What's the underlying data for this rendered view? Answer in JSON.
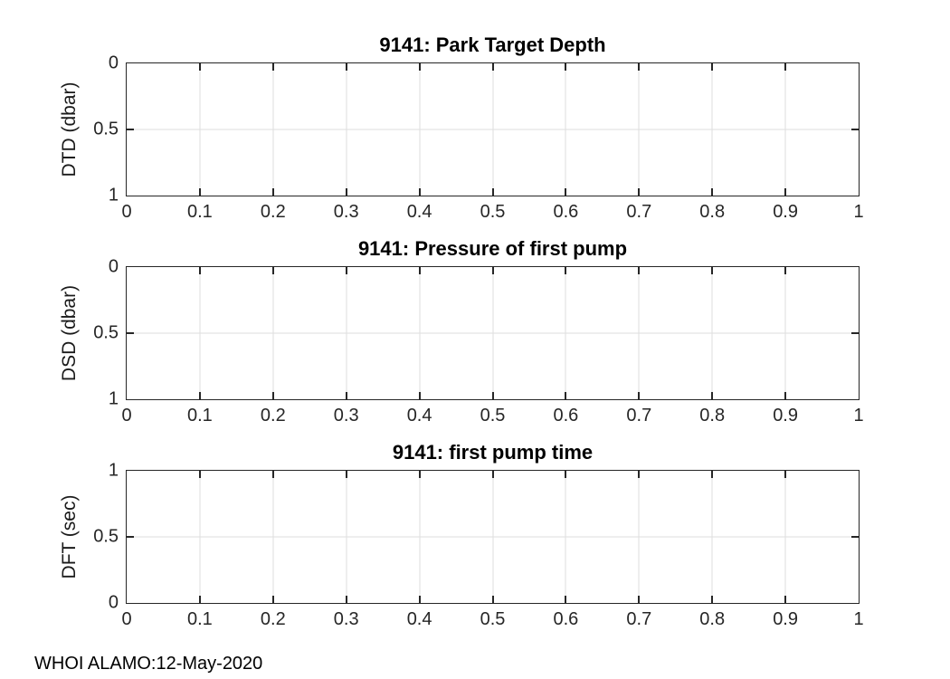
{
  "colors": {
    "background": "#ffffff",
    "axis": "#262626",
    "grid": "#dedede",
    "title": "#000000"
  },
  "footer": {
    "text": "WHOI ALAMO:12-May-2020"
  },
  "chart_data": [
    {
      "type": "line",
      "title": "9141: Park Target Depth",
      "xlabel": "",
      "ylabel": "DTD (dbar)",
      "xlim": [
        0,
        1
      ],
      "ylim": [
        0,
        1
      ],
      "ydir": "reverse",
      "xticks": [
        0,
        0.1,
        0.2,
        0.3,
        0.4,
        0.5,
        0.6,
        0.7,
        0.8,
        0.9,
        1
      ],
      "xtick_labels": [
        "0",
        "0.1",
        "0.2",
        "0.3",
        "0.4",
        "0.5",
        "0.6",
        "0.7",
        "0.8",
        "0.9",
        "1"
      ],
      "yticks": [
        0,
        0.5,
        1
      ],
      "ytick_labels": [
        "0",
        "0.5",
        "1"
      ],
      "grid": true,
      "box": true,
      "legend": null,
      "series": []
    },
    {
      "type": "line",
      "title": "9141: Pressure of first pump",
      "xlabel": "",
      "ylabel": "DSD (dbar)",
      "xlim": [
        0,
        1
      ],
      "ylim": [
        0,
        1
      ],
      "ydir": "reverse",
      "xticks": [
        0,
        0.1,
        0.2,
        0.3,
        0.4,
        0.5,
        0.6,
        0.7,
        0.8,
        0.9,
        1
      ],
      "xtick_labels": [
        "0",
        "0.1",
        "0.2",
        "0.3",
        "0.4",
        "0.5",
        "0.6",
        "0.7",
        "0.8",
        "0.9",
        "1"
      ],
      "yticks": [
        0,
        0.5,
        1
      ],
      "ytick_labels": [
        "0",
        "0.5",
        "1"
      ],
      "grid": true,
      "box": true,
      "legend": null,
      "series": []
    },
    {
      "type": "line",
      "title": "9141: first pump time",
      "xlabel": "",
      "ylabel": "DFT (sec)",
      "xlim": [
        0,
        1
      ],
      "ylim": [
        0,
        1
      ],
      "ydir": "normal",
      "xticks": [
        0,
        0.1,
        0.2,
        0.3,
        0.4,
        0.5,
        0.6,
        0.7,
        0.8,
        0.9,
        1
      ],
      "xtick_labels": [
        "0",
        "0.1",
        "0.2",
        "0.3",
        "0.4",
        "0.5",
        "0.6",
        "0.7",
        "0.8",
        "0.9",
        "1"
      ],
      "yticks": [
        0,
        0.5,
        1
      ],
      "ytick_labels": [
        "0",
        "0.5",
        "1"
      ],
      "grid": true,
      "box": true,
      "legend": null,
      "series": []
    }
  ]
}
